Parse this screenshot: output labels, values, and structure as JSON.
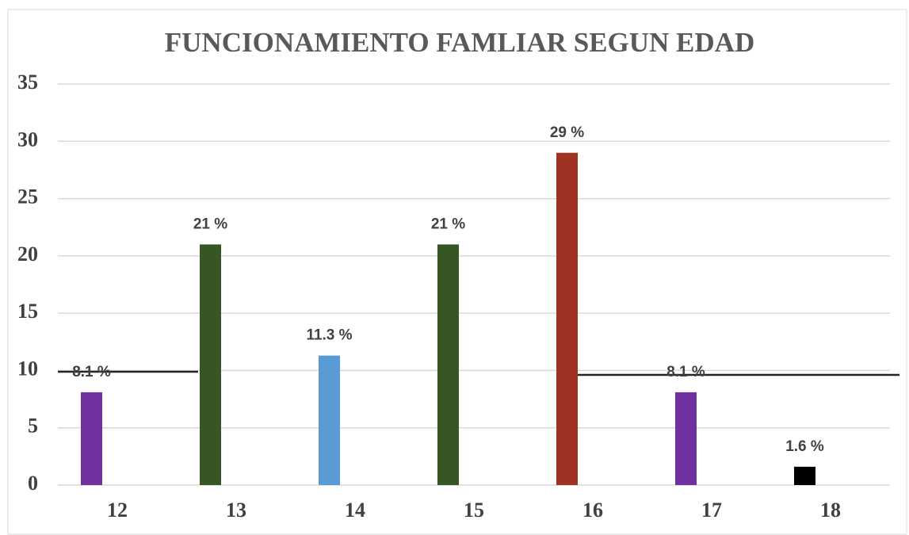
{
  "chart_data": {
    "type": "bar",
    "title": "FUNCIONAMIENTO FAMLIAR SEGUN  EDAD",
    "categories": [
      "12",
      "13",
      "14",
      "15",
      "16",
      "17",
      "18"
    ],
    "values": [
      8.1,
      21,
      11.3,
      21,
      29,
      8.1,
      1.6
    ],
    "value_labels": [
      "8.1 %",
      "21 %",
      "11.3 %",
      "21 %",
      "29 %",
      "8.1 %",
      "1.6 %"
    ],
    "colors": [
      "#7030a0",
      "#375623",
      "#5b9bd5",
      "#375623",
      "#9e3223",
      "#7030a0",
      "#000000"
    ],
    "ylim": [
      0,
      35
    ],
    "yticks": [
      0,
      5,
      10,
      15,
      20,
      25,
      30,
      35
    ],
    "grid": true
  }
}
